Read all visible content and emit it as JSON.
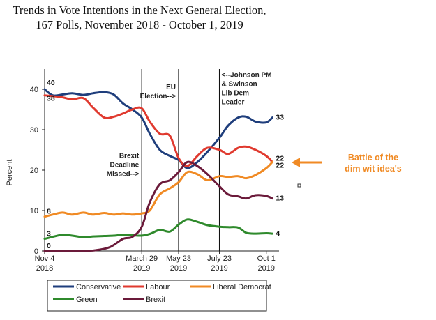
{
  "chart_data": {
    "type": "line",
    "title": "Trends in Vote Intentions in the Next General Election,",
    "subtitle": "167 Polls, November 2018 - October 1, 2019",
    "ylabel": "Percent",
    "ylim": [
      0,
      45
    ],
    "yticks": [
      "0",
      "10",
      "20",
      "30",
      "40"
    ],
    "xlim": [
      "2018-11-04",
      "2019-10-20"
    ],
    "xticks": [
      {
        "date": "2018-11-04",
        "line1": "Nov 4",
        "line2": "2018"
      },
      {
        "date": "2019-03-29",
        "line1": "March 29",
        "line2": "2019"
      },
      {
        "date": "2019-05-23",
        "line1": "May 23",
        "line2": "2019"
      },
      {
        "date": "2019-07-23",
        "line1": "July 23",
        "line2": "2019"
      },
      {
        "date": "2019-10-01",
        "line1": "Oct 1",
        "line2": "2019"
      }
    ],
    "vlines": [
      {
        "date": "2019-03-29",
        "lines": [
          "Brexit",
          "Deadline",
          "Missed-->"
        ],
        "anchor": "end",
        "y": 23
      },
      {
        "date": "2019-05-23",
        "lines": [
          "EU",
          "Election-->"
        ],
        "anchor": "end",
        "y": 40
      },
      {
        "date": "2019-07-23",
        "lines": [
          "<--Johnson PM",
          "& Swinson",
          "Lib Dem",
          "Leader"
        ],
        "anchor": "start",
        "y": 43
      }
    ],
    "series": [
      {
        "name": "Conservative",
        "color": "#1f3e7c",
        "start_label": "40",
        "end_label": "33",
        "points": [
          [
            "2018-11-04",
            40
          ],
          [
            "2018-11-16",
            38.5
          ],
          [
            "2018-12-01",
            38.7
          ],
          [
            "2018-12-15",
            39
          ],
          [
            "2019-01-01",
            38.6
          ],
          [
            "2019-01-15",
            39
          ],
          [
            "2019-02-01",
            39.3
          ],
          [
            "2019-02-15",
            38.7
          ],
          [
            "2019-03-01",
            36.5
          ],
          [
            "2019-03-15",
            35
          ],
          [
            "2019-03-29",
            33
          ],
          [
            "2019-04-10",
            29
          ],
          [
            "2019-04-25",
            25
          ],
          [
            "2019-05-10",
            23.5
          ],
          [
            "2019-05-23",
            22.5
          ],
          [
            "2019-06-05",
            20.5
          ],
          [
            "2019-06-20",
            22
          ],
          [
            "2019-07-05",
            24.5
          ],
          [
            "2019-07-23",
            28
          ],
          [
            "2019-08-05",
            31
          ],
          [
            "2019-08-20",
            33
          ],
          [
            "2019-09-01",
            33.2
          ],
          [
            "2019-09-15",
            32
          ],
          [
            "2019-10-01",
            31.8
          ],
          [
            "2019-10-10",
            33
          ]
        ]
      },
      {
        "name": "Labour",
        "color": "#e03a2f",
        "start_label": "38",
        "end_label": "22",
        "points": [
          [
            "2018-11-04",
            38.5
          ],
          [
            "2018-11-16",
            38.3
          ],
          [
            "2018-12-01",
            38
          ],
          [
            "2018-12-15",
            37.5
          ],
          [
            "2019-01-01",
            37.8
          ],
          [
            "2019-01-15",
            35.5
          ],
          [
            "2019-02-01",
            33
          ],
          [
            "2019-02-15",
            33.2
          ],
          [
            "2019-03-01",
            34
          ],
          [
            "2019-03-15",
            35
          ],
          [
            "2019-03-29",
            35.3
          ],
          [
            "2019-04-10",
            32
          ],
          [
            "2019-04-25",
            29
          ],
          [
            "2019-05-10",
            28.5
          ],
          [
            "2019-05-23",
            23
          ],
          [
            "2019-06-05",
            21
          ],
          [
            "2019-06-20",
            23.5
          ],
          [
            "2019-07-05",
            25.5
          ],
          [
            "2019-07-23",
            25
          ],
          [
            "2019-08-05",
            24
          ],
          [
            "2019-08-20",
            25.5
          ],
          [
            "2019-09-01",
            25.8
          ],
          [
            "2019-09-15",
            25
          ],
          [
            "2019-10-01",
            23.5
          ],
          [
            "2019-10-10",
            22
          ]
        ]
      },
      {
        "name": "Liberal Democrat",
        "color": "#f08a24",
        "start_label": "8",
        "end_label": "22",
        "points": [
          [
            "2018-11-04",
            8.5
          ],
          [
            "2018-11-16",
            9
          ],
          [
            "2018-12-01",
            9.5
          ],
          [
            "2018-12-15",
            9
          ],
          [
            "2019-01-01",
            9.5
          ],
          [
            "2019-01-15",
            9
          ],
          [
            "2019-02-01",
            9.4
          ],
          [
            "2019-02-15",
            9
          ],
          [
            "2019-03-01",
            9.3
          ],
          [
            "2019-03-15",
            9
          ],
          [
            "2019-03-29",
            9.3
          ],
          [
            "2019-04-10",
            10
          ],
          [
            "2019-04-25",
            14
          ],
          [
            "2019-05-10",
            15.5
          ],
          [
            "2019-05-23",
            17
          ],
          [
            "2019-06-05",
            19.5
          ],
          [
            "2019-06-20",
            19
          ],
          [
            "2019-07-05",
            17.5
          ],
          [
            "2019-07-23",
            18.5
          ],
          [
            "2019-08-05",
            18.3
          ],
          [
            "2019-08-20",
            18.5
          ],
          [
            "2019-09-01",
            18
          ],
          [
            "2019-09-15",
            18.8
          ],
          [
            "2019-10-01",
            20.5
          ],
          [
            "2019-10-10",
            22
          ]
        ]
      },
      {
        "name": "Green",
        "color": "#2f8a2c",
        "start_label": "3",
        "end_label": "4",
        "points": [
          [
            "2018-11-04",
            3
          ],
          [
            "2018-11-16",
            3.5
          ],
          [
            "2018-12-01",
            4
          ],
          [
            "2018-12-15",
            3.8
          ],
          [
            "2019-01-01",
            3.4
          ],
          [
            "2019-01-15",
            3.6
          ],
          [
            "2019-02-01",
            3.7
          ],
          [
            "2019-02-15",
            3.8
          ],
          [
            "2019-03-01",
            4
          ],
          [
            "2019-03-15",
            3.9
          ],
          [
            "2019-03-29",
            3.8
          ],
          [
            "2019-04-10",
            4.2
          ],
          [
            "2019-04-25",
            5.2
          ],
          [
            "2019-05-10",
            4.8
          ],
          [
            "2019-05-23",
            6.5
          ],
          [
            "2019-06-05",
            7.8
          ],
          [
            "2019-06-20",
            7.2
          ],
          [
            "2019-07-05",
            6.4
          ],
          [
            "2019-07-23",
            6
          ],
          [
            "2019-08-05",
            5.9
          ],
          [
            "2019-08-20",
            5.8
          ],
          [
            "2019-09-01",
            4.5
          ],
          [
            "2019-09-15",
            4.3
          ],
          [
            "2019-10-01",
            4.4
          ],
          [
            "2019-10-10",
            4.3
          ]
        ]
      },
      {
        "name": "Brexit",
        "color": "#6b1a3a",
        "start_label": "0",
        "end_label": "13",
        "points": [
          [
            "2018-11-04",
            0
          ],
          [
            "2018-12-01",
            0
          ],
          [
            "2019-01-01",
            0
          ],
          [
            "2019-01-20",
            0.2
          ],
          [
            "2019-02-10",
            1
          ],
          [
            "2019-03-01",
            3
          ],
          [
            "2019-03-15",
            3.5
          ],
          [
            "2019-03-29",
            6
          ],
          [
            "2019-04-10",
            12
          ],
          [
            "2019-04-25",
            16.5
          ],
          [
            "2019-05-10",
            17.5
          ],
          [
            "2019-05-23",
            19.5
          ],
          [
            "2019-06-05",
            22
          ],
          [
            "2019-06-20",
            21
          ],
          [
            "2019-07-05",
            19
          ],
          [
            "2019-07-23",
            16
          ],
          [
            "2019-08-05",
            14
          ],
          [
            "2019-08-20",
            13.5
          ],
          [
            "2019-09-01",
            13
          ],
          [
            "2019-09-15",
            13.8
          ],
          [
            "2019-10-01",
            13.6
          ],
          [
            "2019-10-10",
            13
          ]
        ]
      }
    ],
    "annotation": {
      "lines": [
        "Battle of the",
        "dim wit idea's"
      ],
      "color": "#f08a24"
    },
    "legend": {
      "placement": "bottom"
    }
  }
}
